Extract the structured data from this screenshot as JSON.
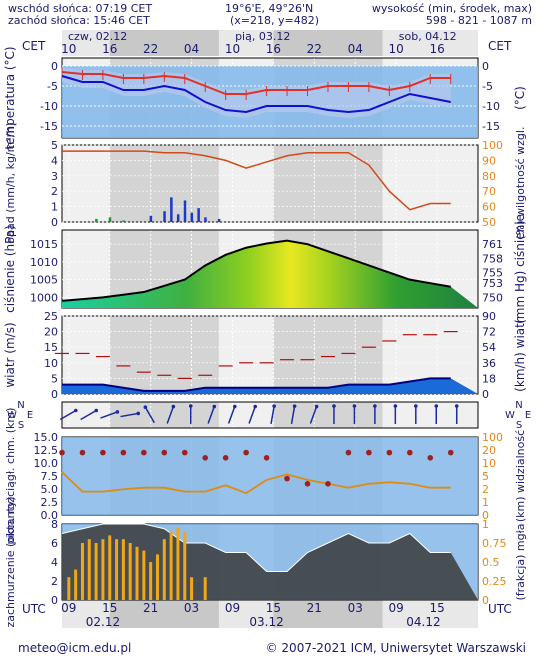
{
  "header": {
    "sunrise": "wschód słońca: 07:19 CET",
    "sunset": "zachód słońca: 15:46 CET",
    "coords": "19°6'E, 49°26'N",
    "grid": "(x=218, y=482)",
    "elev_label": "wysokość (min, środek, max)",
    "elev_values": "598 - 821 - 1087 m"
  },
  "top_axis": {
    "tz_left": "CET",
    "tz_right": "CET",
    "days": [
      "czw, 02.12",
      "pią, 03.12",
      "sob, 04.12"
    ],
    "hours": [
      "10",
      "16",
      "22",
      "04",
      "10",
      "16",
      "22",
      "04",
      "10",
      "16"
    ]
  },
  "bottom_axis": {
    "tz_left": "UTC",
    "tz_right": "UTC",
    "hours": [
      "09",
      "15",
      "21",
      "03",
      "09",
      "15",
      "21",
      "03",
      "09",
      "15"
    ],
    "dates": [
      "02.12",
      "03.12",
      "04.12"
    ]
  },
  "footer": {
    "email": "meteo@icm.edu.pl",
    "copyright": "© 2007-2021 ICM, Uniwersytet Warszawski"
  },
  "colors": {
    "bg_blue": "#7fb7ea",
    "text": "#1a1a6e",
    "temp_red": "#e0302a",
    "temp_blue": "#1010d0",
    "orange": "#e08a10"
  },
  "chart_data": [
    {
      "type": "line",
      "id": "temperature",
      "ylabel_left": "temperatura (°C)",
      "ylabel_right": "(°C)",
      "ylim": [
        -18,
        2
      ],
      "yticks": [
        0,
        -5,
        -10,
        -15
      ],
      "x_hours": [
        0,
        3,
        6,
        9,
        12,
        15,
        18,
        21,
        24,
        27,
        30,
        33,
        36,
        39,
        42,
        45,
        48,
        51,
        54,
        57
      ],
      "series": [
        {
          "values": [
            -1.5,
            -2,
            -2,
            -3,
            -3,
            -2.5,
            -3,
            -5,
            -7,
            -7,
            -6,
            -6,
            -6,
            -5,
            -5,
            -5,
            -6,
            -5,
            -3,
            -3
          ]
        },
        {
          "values": [
            -2.5,
            -4,
            -4,
            -6,
            -6,
            -5,
            -6,
            -9,
            -11,
            -11.5,
            -10,
            -10,
            -10,
            -11,
            -11.5,
            -11,
            -9,
            -7,
            -8,
            -9
          ]
        }
      ]
    },
    {
      "type": "line",
      "id": "precip_humidity",
      "ylabel_left": "opad (mm/h, kg/m²/h)",
      "ylabel_right": "(%) wilgotność wzgl.",
      "ylim_left": [
        0,
        5
      ],
      "yticks_left": [
        0,
        1,
        2,
        3,
        4,
        5
      ],
      "ylim_right": [
        50,
        100
      ],
      "yticks_right": [
        50,
        60,
        70,
        80,
        90,
        100
      ],
      "humidity_x_hours": [
        0,
        6,
        12,
        15,
        18,
        21,
        24,
        27,
        30,
        33,
        36,
        39,
        42,
        45,
        48,
        51,
        54,
        57
      ],
      "humidity": [
        96,
        96,
        96,
        95,
        95,
        93,
        90,
        85,
        89,
        93,
        95,
        95,
        95,
        87,
        70,
        58,
        62,
        62
      ],
      "precip_x_hours": [
        5,
        7,
        9,
        13,
        15,
        16,
        17,
        18,
        19,
        20,
        21,
        23
      ],
      "precip": [
        0.2,
        0.3,
        0.1,
        0.4,
        0.7,
        1.6,
        0.5,
        1.4,
        0.6,
        0.9,
        0.3,
        0.2
      ]
    },
    {
      "type": "area",
      "id": "pressure",
      "ylabel_left": "ciśnienie (hPa)",
      "ylabel_right": "(mm Hg) ciśnienie",
      "ylim": [
        997,
        1019
      ],
      "yticks": [
        1000,
        1005,
        1010,
        1015
      ],
      "yticks_right": [
        "750",
        "753",
        "755",
        "758",
        "761"
      ],
      "x_hours": [
        0,
        6,
        12,
        18,
        21,
        24,
        27,
        30,
        33,
        36,
        39,
        42,
        45,
        48,
        51,
        54,
        57
      ],
      "values": [
        999,
        1000,
        1001.5,
        1005,
        1009,
        1012,
        1014,
        1015.2,
        1016,
        1015,
        1013,
        1011,
        1009,
        1007,
        1005,
        1004,
        1003
      ]
    },
    {
      "type": "line",
      "id": "wind",
      "ylabel_left": "wiatr (m/s)",
      "ylabel_right": "(km/h) wiatr",
      "ylim": [
        0,
        25
      ],
      "yticks": [
        0,
        5,
        10,
        15,
        20,
        25
      ],
      "yticks_right": [
        "0",
        "18",
        "36",
        "54",
        "72",
        "90"
      ],
      "x_hours": [
        0,
        3,
        6,
        9,
        12,
        15,
        18,
        21,
        24,
        27,
        30,
        33,
        36,
        39,
        42,
        45,
        48,
        51,
        54,
        57
      ],
      "gusts": [
        13,
        13,
        12,
        9,
        7,
        6,
        5,
        6,
        9,
        10,
        10,
        11,
        11,
        12,
        13,
        15,
        17,
        19,
        19,
        20
      ],
      "speed": [
        3,
        3,
        3,
        2,
        1,
        1,
        1,
        2,
        2,
        2,
        2,
        2,
        2,
        2,
        3,
        3,
        3,
        4,
        5,
        5
      ]
    },
    {
      "type": "scatter",
      "id": "wind_dir",
      "labels": [
        "N",
        "S",
        "W",
        "E"
      ],
      "x_hours": [
        0,
        3,
        6,
        9,
        12,
        15,
        18,
        21,
        24,
        27,
        30,
        33,
        36,
        39,
        42,
        45,
        48,
        51,
        54,
        57
      ],
      "direction_deg": [
        240,
        240,
        250,
        260,
        150,
        200,
        180,
        200,
        200,
        200,
        190,
        190,
        200,
        180,
        180,
        180,
        180,
        180,
        180,
        180
      ]
    },
    {
      "type": "line",
      "id": "visibility",
      "ylabel_left": "pion. rozciągł. chm. (km)",
      "ylabel_right": "(km) widzialność",
      "ylim_left": [
        0,
        15
      ],
      "yticks_left": [
        "0.0",
        "2.5",
        "5.0",
        "7.5",
        "10.0",
        "12.5",
        "15.0"
      ],
      "ylim_right": [
        0,
        100
      ],
      "yticks_right": [
        "0",
        "1",
        "2",
        "5",
        "10",
        "20",
        "100"
      ],
      "x_hours": [
        0,
        3,
        6,
        9,
        12,
        15,
        18,
        21,
        24,
        27,
        30,
        33,
        36,
        39,
        42,
        45,
        48,
        51,
        54,
        57
      ],
      "visibility_pct": [
        55,
        30,
        30,
        33,
        35,
        35,
        30,
        30,
        38,
        28,
        45,
        52,
        45,
        40,
        35,
        40,
        42,
        40,
        35,
        35
      ],
      "cloud_depth_km": [
        12,
        12,
        12,
        12,
        12,
        12,
        12,
        11,
        11,
        12,
        11,
        7,
        6,
        6,
        12,
        12,
        12,
        12,
        11,
        12
      ]
    },
    {
      "type": "area",
      "id": "cloudiness",
      "ylabel_left": "zachmurzenie (oktanty)",
      "ylabel_right": "(frakcja) mgła",
      "ylim_left": [
        0,
        8
      ],
      "yticks_left": [
        0,
        2,
        4,
        6,
        8
      ],
      "ylim_right": [
        0,
        1
      ],
      "yticks_right": [
        "0",
        "0.25",
        "0.5",
        "0.75",
        "1"
      ],
      "x_hours": [
        0,
        3,
        6,
        9,
        12,
        15,
        18,
        21,
        24,
        27,
        30,
        33,
        36,
        39,
        42,
        45,
        48,
        51,
        54,
        57
      ],
      "cloud_total": [
        7,
        7.5,
        8,
        8,
        8,
        7.5,
        6,
        6,
        5,
        5,
        3,
        3,
        5,
        6,
        7,
        6,
        6,
        7,
        5,
        5
      ],
      "fog_x_hours": [
        1,
        2,
        3,
        4,
        5,
        6,
        7,
        8,
        9,
        10,
        11,
        12,
        13,
        14,
        15,
        16,
        17,
        18,
        19,
        21
      ],
      "fog_fraction": [
        0.3,
        0.4,
        0.75,
        0.8,
        0.75,
        0.8,
        0.85,
        0.8,
        0.8,
        0.75,
        0.7,
        0.65,
        0.5,
        0.6,
        0.8,
        0.9,
        0.95,
        0.9,
        0.3,
        0.3
      ]
    }
  ]
}
